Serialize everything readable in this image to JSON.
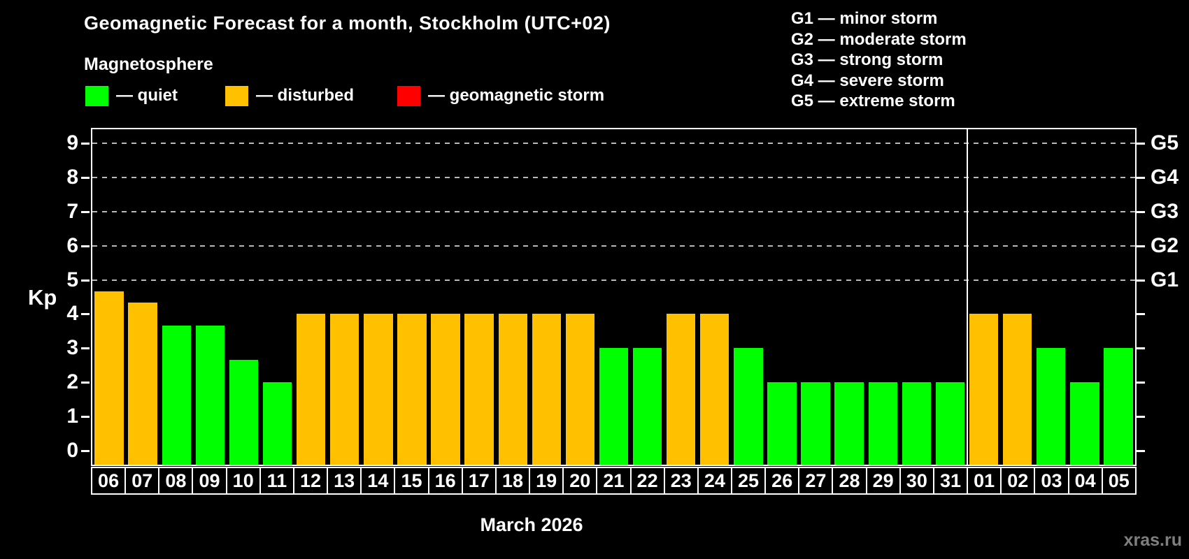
{
  "header": {
    "title": "Geomagnetic Forecast for a month, Stockholm (UTC+02)",
    "subtitle": "Magnetosphere",
    "legend": [
      {
        "id": "quiet",
        "label": "— quiet",
        "color": "#00ff00"
      },
      {
        "id": "disturbed",
        "label": "— disturbed",
        "color": "#ffc000"
      },
      {
        "id": "storm",
        "label": "— geomagnetic storm",
        "color": "#ff0000"
      }
    ],
    "g_scale": [
      "G1 — minor storm",
      "G2 — moderate storm",
      "G3 — strong storm",
      "G4 — severe storm",
      "G5 — extreme storm"
    ]
  },
  "chart_data": {
    "type": "bar",
    "title": "Geomagnetic Forecast for a month, Stockholm (UTC+02)",
    "ylabel": "Kp",
    "xlabel": "March 2026",
    "ylim": [
      -0.4,
      9.4
    ],
    "yticks": [
      0,
      1,
      2,
      3,
      4,
      5,
      6,
      7,
      8,
      9
    ],
    "gridlines": [
      5,
      6,
      7,
      8,
      9
    ],
    "right_axis_ticks": [
      {
        "label": "G1",
        "value": 5
      },
      {
        "label": "G2",
        "value": 6
      },
      {
        "label": "G3",
        "value": 7
      },
      {
        "label": "G4",
        "value": 8
      },
      {
        "label": "G5",
        "value": 9
      }
    ],
    "categories": [
      "06",
      "07",
      "08",
      "09",
      "10",
      "11",
      "12",
      "13",
      "14",
      "15",
      "16",
      "17",
      "18",
      "19",
      "20",
      "21",
      "22",
      "23",
      "24",
      "25",
      "26",
      "27",
      "28",
      "29",
      "30",
      "31",
      "01",
      "02",
      "03",
      "04",
      "05"
    ],
    "values": [
      4.67,
      4.33,
      3.67,
      3.67,
      2.67,
      2,
      4,
      4,
      4,
      4,
      4,
      4,
      4,
      4,
      4,
      3,
      3,
      4,
      4,
      3,
      2,
      2,
      2,
      2,
      2,
      2,
      4,
      4,
      3,
      2,
      3
    ],
    "states": [
      "disturbed",
      "disturbed",
      "quiet",
      "quiet",
      "quiet",
      "quiet",
      "disturbed",
      "disturbed",
      "disturbed",
      "disturbed",
      "disturbed",
      "disturbed",
      "disturbed",
      "disturbed",
      "disturbed",
      "quiet",
      "quiet",
      "disturbed",
      "disturbed",
      "quiet",
      "quiet",
      "quiet",
      "quiet",
      "quiet",
      "quiet",
      "quiet",
      "disturbed",
      "disturbed",
      "quiet",
      "quiet",
      "quiet"
    ],
    "state_colors": {
      "quiet": "#00ff00",
      "disturbed": "#ffc000",
      "storm": "#ff0000"
    },
    "month_divider_index": 26,
    "legend_position": "top",
    "grid": true
  },
  "footer": {
    "watermark": "xras.ru"
  }
}
